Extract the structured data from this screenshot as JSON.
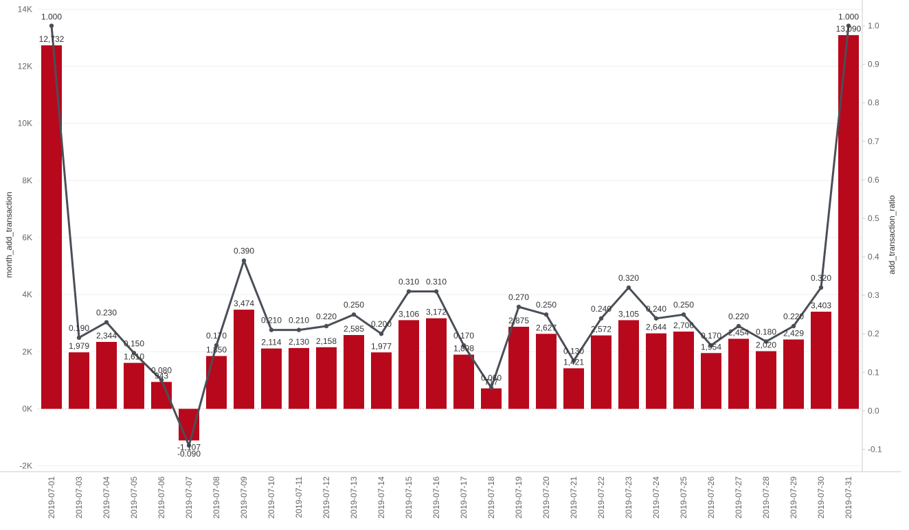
{
  "chart_data": {
    "type": "bar",
    "categories": [
      "2019-07-01",
      "2019-07-03",
      "2019-07-04",
      "2019-07-05",
      "2019-07-06",
      "2019-07-07",
      "2019-07-08",
      "2019-07-09",
      "2019-07-10",
      "2019-07-11",
      "2019-07-12",
      "2019-07-13",
      "2019-07-14",
      "2019-07-15",
      "2019-07-16",
      "2019-07-17",
      "2019-07-18",
      "2019-07-19",
      "2019-07-20",
      "2019-07-21",
      "2019-07-22",
      "2019-07-23",
      "2019-07-24",
      "2019-07-25",
      "2019-07-26",
      "2019-07-27",
      "2019-07-28",
      "2019-07-29",
      "2019-07-30",
      "2019-07-31"
    ],
    "series": [
      {
        "name": "month_add_transaction",
        "type": "bar",
        "axis": "left",
        "color": "#b8081c",
        "values": [
          12732,
          1979,
          2344,
          1610,
          943,
          -1107,
          1850,
          3474,
          2114,
          2130,
          2158,
          2585,
          1977,
          3106,
          3172,
          1898,
          717,
          2875,
          2627,
          1421,
          2572,
          3105,
          2644,
          2706,
          1954,
          2454,
          2020,
          2429,
          3403,
          13090
        ],
        "labels": [
          "12,732",
          "1,979",
          "2,344",
          "1,610",
          "943",
          "-1,107",
          "1,850",
          "3,474",
          "2,114",
          "2,130",
          "2,158",
          "2,585",
          "1,977",
          "3,106",
          "3,172",
          "1,898",
          "717",
          "2,875",
          "2,627",
          "1,421",
          "2,572",
          "3,105",
          "2,644",
          "2,706",
          "1,954",
          "2,454",
          "2,020",
          "2,429",
          "3,403",
          "13,090"
        ]
      },
      {
        "name": "add_transaction_ratio",
        "type": "line",
        "axis": "right",
        "color": "#4a4f57",
        "values": [
          1.0,
          0.19,
          0.23,
          0.15,
          0.08,
          -0.09,
          0.17,
          0.39,
          0.21,
          0.21,
          0.22,
          0.25,
          0.2,
          0.31,
          0.31,
          0.17,
          0.06,
          0.27,
          0.25,
          0.13,
          0.24,
          0.32,
          0.24,
          0.25,
          0.17,
          0.22,
          0.18,
          0.22,
          0.32,
          1.0
        ],
        "labels": [
          "1.000",
          "0.190",
          "0.230",
          "0.150",
          "0.080",
          "-0.090",
          "0.170",
          "0.390",
          "0.210",
          "0.210",
          "0.220",
          "0.250",
          "0.200",
          "0.310",
          "0.310",
          "0.170",
          "0.060",
          "0.270",
          "0.250",
          "0.130",
          "0.240",
          "0.320",
          "0.240",
          "0.250",
          "0.170",
          "0.220",
          "0.180",
          "0.220",
          "0.320",
          "1.000"
        ]
      }
    ],
    "y_left": {
      "label": "month_add_transaction",
      "ylim": [
        -2200,
        14200
      ],
      "ticks": [
        -2000,
        0,
        2000,
        4000,
        6000,
        8000,
        10000,
        12000,
        14000
      ],
      "tick_labels": [
        "-2K",
        "0K",
        "2K",
        "4K",
        "6K",
        "8K",
        "10K",
        "12K",
        "14K"
      ]
    },
    "y_right": {
      "label": "add_transaction_ratio",
      "ylim": [
        -0.158,
        1.058
      ],
      "ticks": [
        -0.1,
        0.0,
        0.1,
        0.2,
        0.3,
        0.4,
        0.5,
        0.6,
        0.7,
        0.8,
        0.9,
        1.0
      ],
      "tick_labels": [
        "-0.1",
        "0.0",
        "0.1",
        "0.2",
        "0.3",
        "0.4",
        "0.5",
        "0.6",
        "0.7",
        "0.8",
        "0.9",
        "1.0"
      ]
    },
    "xlabel": "",
    "title": "",
    "grid": true
  }
}
